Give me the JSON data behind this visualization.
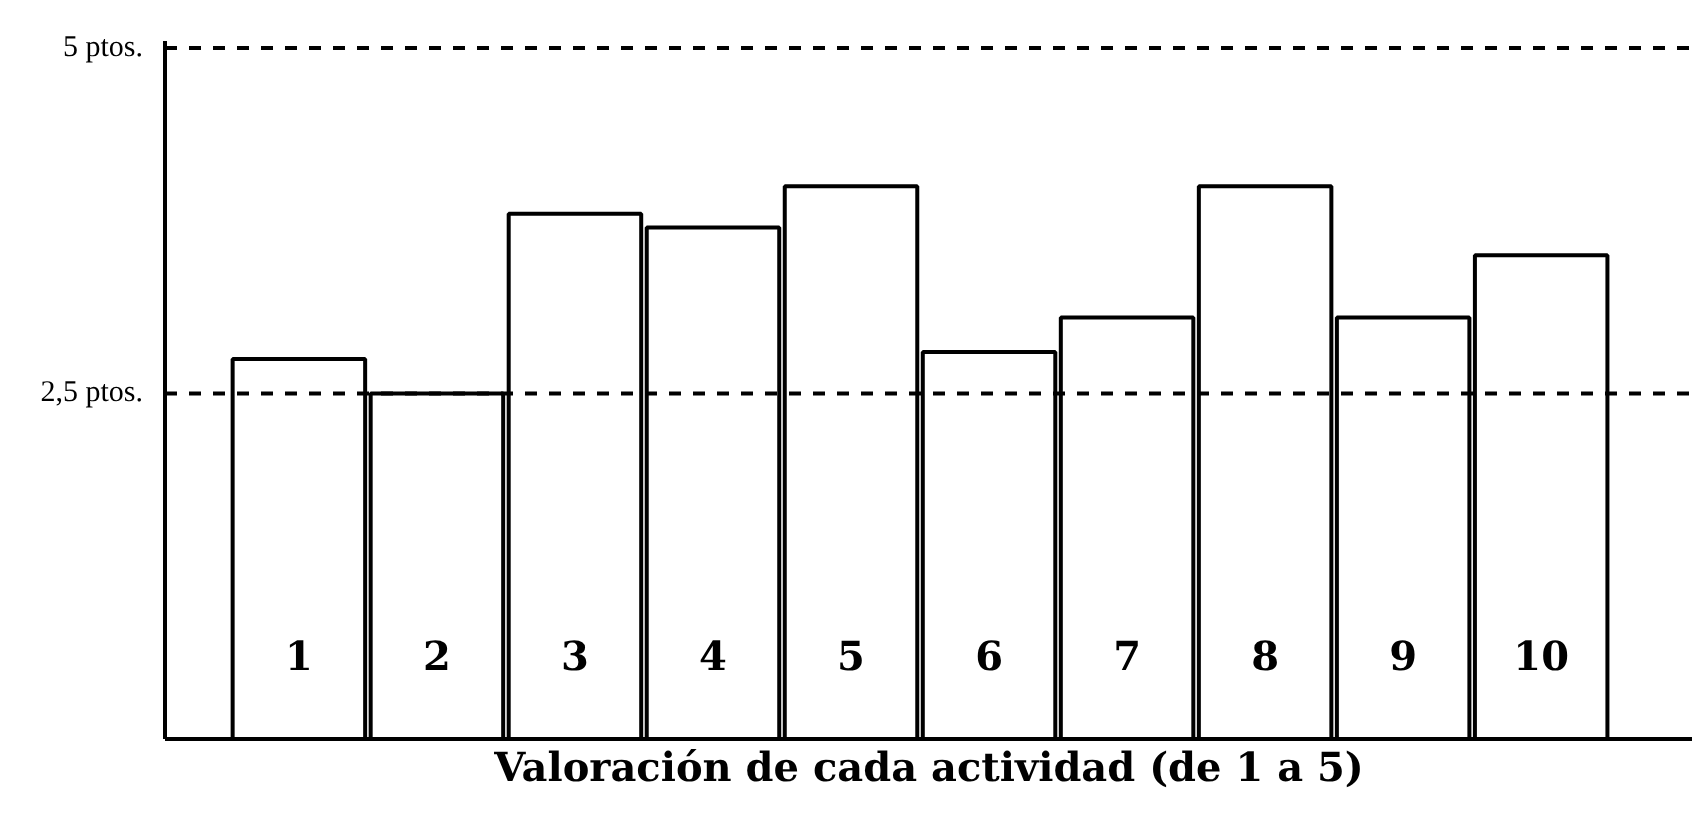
{
  "chart_data": {
    "type": "bar",
    "xlabel": "Valoración de cada actividad (de 1 a 5)",
    "categories": [
      "1",
      "2",
      "3",
      "4",
      "5",
      "6",
      "7",
      "8",
      "9",
      "10"
    ],
    "values": [
      2.75,
      2.5,
      3.8,
      3.7,
      4.0,
      2.8,
      3.05,
      4.0,
      3.05,
      3.5
    ],
    "color": "#ffffff",
    "ylim": [
      0,
      5.05
    ],
    "yticks": [
      {
        "value": 2.5,
        "label": "2,5 ptos."
      },
      {
        "value": 5,
        "label": "5 ptos."
      }
    ],
    "ref_lines": [
      {
        "axis": "y",
        "value": 2.5,
        "color": "#000000",
        "line_style": "dashed"
      },
      {
        "axis": "y",
        "value": 5,
        "color": "#000000",
        "line_style": "dashed"
      }
    ],
    "grid": false
  }
}
